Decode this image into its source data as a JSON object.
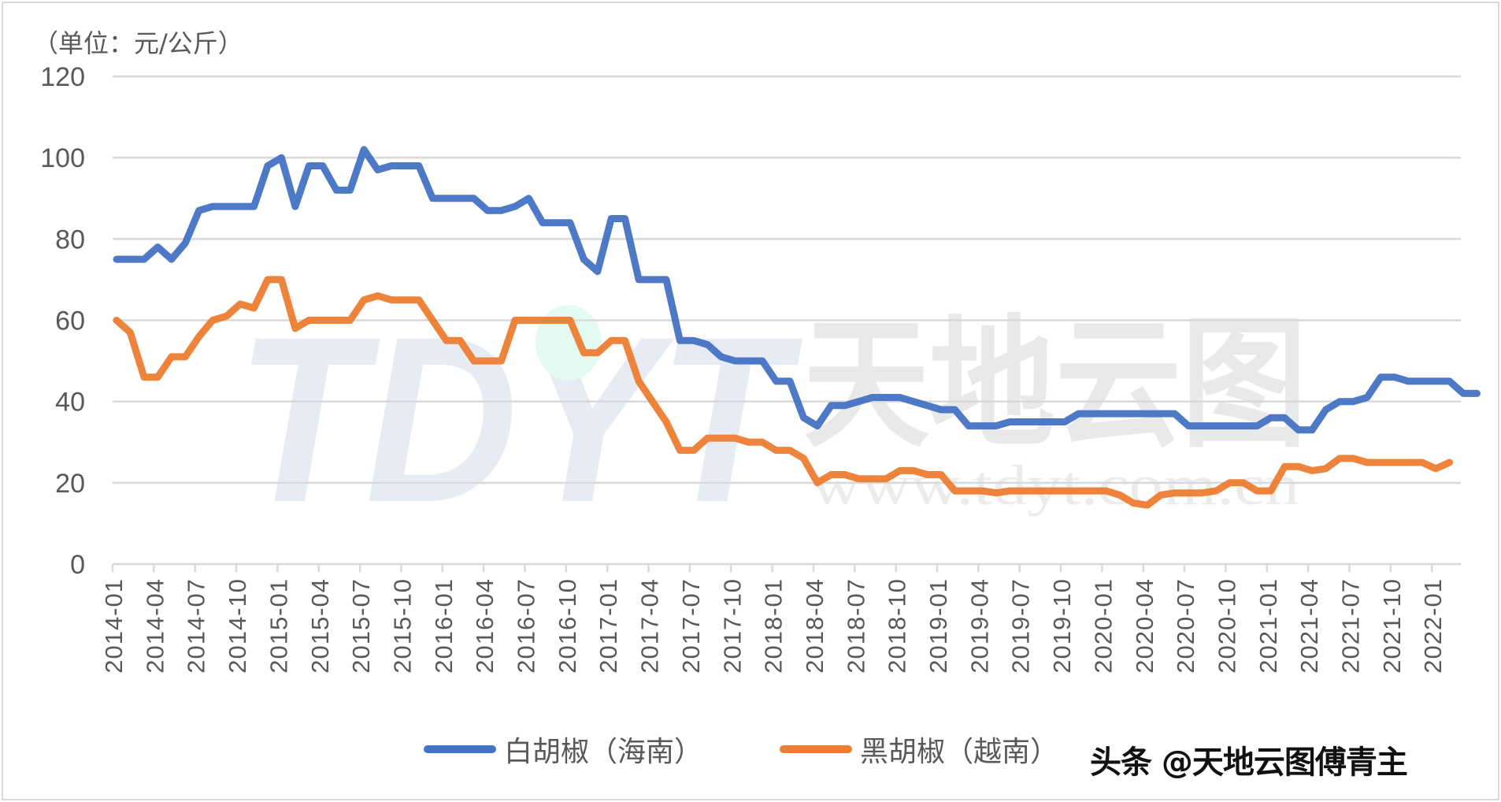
{
  "chart_data": {
    "type": "line",
    "title": "",
    "unit_label": "（单位：元/公斤）",
    "xlabel": "",
    "ylabel": "元/公斤",
    "ylim": [
      0,
      120
    ],
    "yticks": [
      0,
      20,
      40,
      60,
      80,
      100,
      120
    ],
    "grid": true,
    "legend_position": "bottom",
    "x_start": "2014-01",
    "x_frequency": "monthly",
    "xtick_labels": [
      "2014-01",
      "2014-04",
      "2014-07",
      "2014-10",
      "2015-01",
      "2015-04",
      "2015-07",
      "2015-10",
      "2016-01",
      "2016-04",
      "2016-07",
      "2016-10",
      "2017-01",
      "2017-04",
      "2017-07",
      "2017-10",
      "2018-01",
      "2018-04",
      "2018-07",
      "2018-10",
      "2019-01",
      "2019-04",
      "2019-07",
      "2019-10",
      "2020-01",
      "2020-04",
      "2020-07",
      "2020-10",
      "2021-01",
      "2021-04",
      "2021-07",
      "2021-10",
      "2022-01"
    ],
    "series": [
      {
        "name": "白胡椒（海南）",
        "color": "#4472C4",
        "values": [
          75,
          75,
          75,
          78,
          75,
          79,
          87,
          88,
          88,
          88,
          88,
          98,
          100,
          88,
          98,
          98,
          92,
          92,
          102,
          97,
          98,
          98,
          98,
          90,
          90,
          90,
          90,
          87,
          87,
          88,
          90,
          84,
          84,
          84,
          75,
          72,
          85,
          85,
          70,
          70,
          70,
          55,
          55,
          54,
          51,
          50,
          50,
          50,
          45,
          45,
          36,
          34,
          39,
          39,
          40,
          41,
          41,
          41,
          40,
          39,
          38,
          38,
          34,
          34,
          34,
          35,
          35,
          35,
          35,
          35,
          37,
          37,
          37,
          37,
          37,
          37,
          37,
          37,
          34,
          34,
          34,
          34,
          34,
          34,
          36,
          36,
          33,
          33,
          38,
          40,
          40,
          41,
          46,
          46,
          45,
          45,
          45,
          45,
          42,
          42
        ]
      },
      {
        "name": "黑胡椒（越南）",
        "color": "#ED7D31",
        "values": [
          60,
          57,
          46,
          46,
          51,
          51,
          56,
          60,
          61,
          64,
          63,
          70,
          70,
          58,
          60,
          60,
          60,
          60,
          65,
          66,
          65,
          65,
          65,
          60,
          55,
          55,
          50,
          50,
          50,
          60,
          60,
          60,
          60,
          60,
          52,
          52,
          55,
          55,
          45,
          40,
          35,
          28,
          28,
          31,
          31,
          31,
          30,
          30,
          28,
          28,
          26,
          20,
          22,
          22,
          21,
          21,
          21,
          23,
          23,
          22,
          22,
          18,
          18,
          18,
          17.5,
          18,
          18,
          18,
          18,
          18,
          18,
          18,
          18,
          17,
          15,
          14.5,
          17,
          17.5,
          17.5,
          17.5,
          18,
          20,
          20,
          18,
          18,
          24,
          24,
          23,
          23.5,
          26,
          26,
          25,
          25,
          25,
          25,
          25,
          23.5,
          25
        ]
      }
    ]
  },
  "watermark": {
    "logo": "TDYT",
    "cn": "天地云图",
    "url": "www.tdyt.com.cn"
  },
  "credit": "头条 @天地云图傅青主"
}
